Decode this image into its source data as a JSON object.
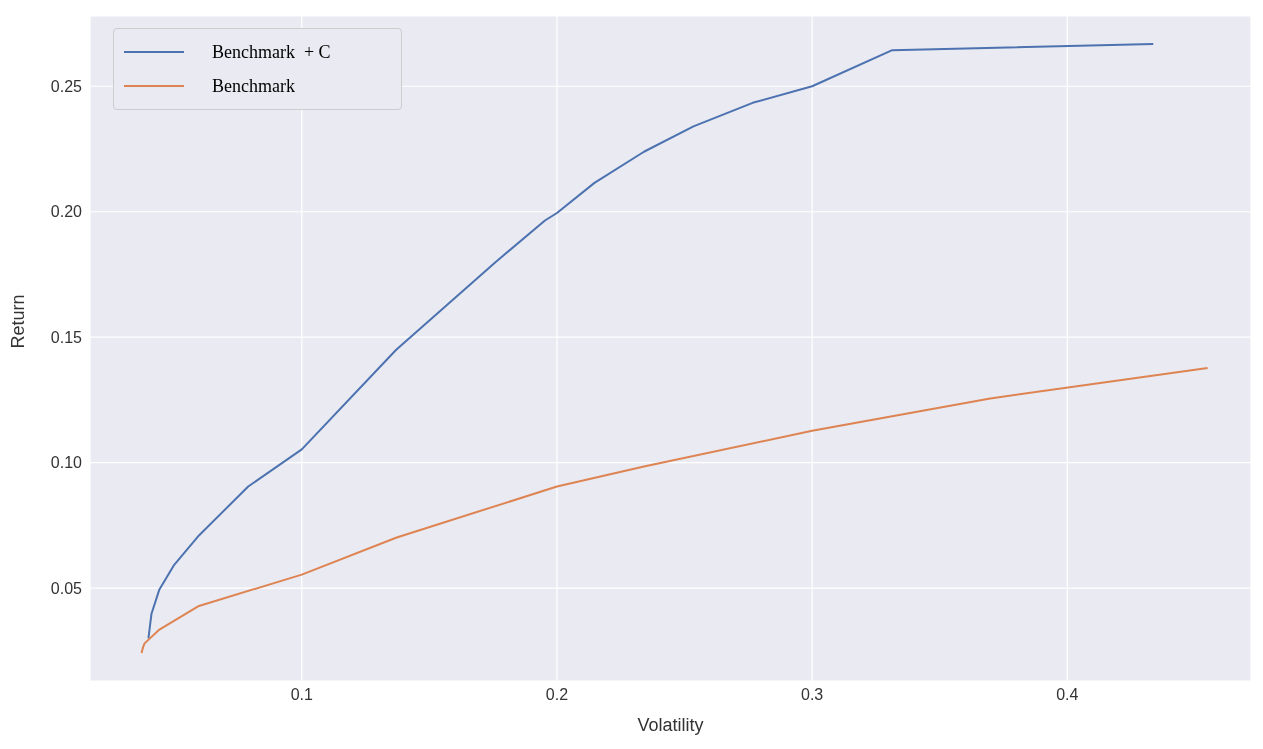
{
  "chart_data": {
    "type": "line",
    "xlabel": "Volatility",
    "ylabel": "Return",
    "xlim": [
      0.017,
      0.472
    ],
    "ylim": [
      0.013,
      0.278
    ],
    "xticks": [
      0.1,
      0.2,
      0.3,
      0.4
    ],
    "yticks": [
      {
        "value": 0.05,
        "label": "0.05"
      },
      {
        "value": 0.1,
        "label": "0.10"
      },
      {
        "value": 0.15,
        "label": "0.15"
      },
      {
        "value": 0.2,
        "label": "0.20"
      },
      {
        "value": 0.25,
        "label": "0.25"
      }
    ],
    "grid": true,
    "legend": "top left",
    "marker": "none",
    "line_style": "solid",
    "series": [
      {
        "name": "Benchmark  + C",
        "color": "#4c72b0",
        "x": [
          0.0399,
          0.0405,
          0.0411,
          0.0442,
          0.05,
          0.0597,
          0.079,
          0.1,
          0.137,
          0.176,
          0.1953,
          0.2,
          0.2147,
          0.2341,
          0.2535,
          0.2767,
          0.3,
          0.3314,
          0.4337
        ],
        "values": [
          0.03,
          0.035,
          0.0398,
          0.0495,
          0.0593,
          0.071,
          0.0905,
          0.1053,
          0.145,
          0.18,
          0.1965,
          0.1995,
          0.2115,
          0.2239,
          0.234,
          0.2434,
          0.25,
          0.2644,
          0.2668
        ]
      },
      {
        "name": "Benchmark",
        "color": "#dd8452",
        "x": [
          0.0372,
          0.0378,
          0.0384,
          0.0442,
          0.0597,
          0.1,
          0.1372,
          0.2,
          0.2341,
          0.3,
          0.3698,
          0.455
        ],
        "values": [
          0.0242,
          0.0265,
          0.028,
          0.0335,
          0.0429,
          0.0554,
          0.0702,
          0.0905,
          0.0985,
          0.1127,
          0.1256,
          0.1377
        ]
      }
    ]
  }
}
